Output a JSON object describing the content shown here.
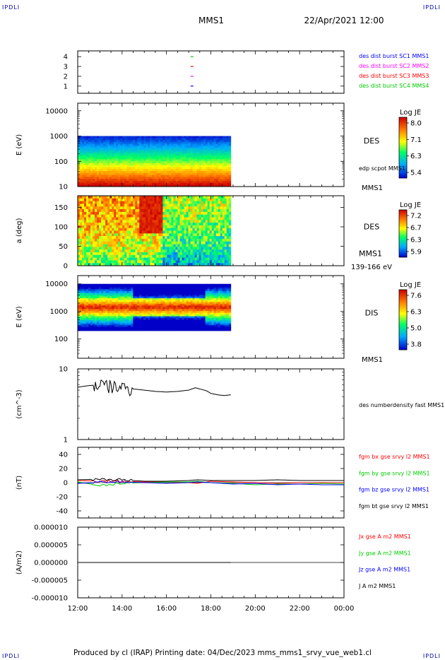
{
  "corners": {
    "label": "IPDLI"
  },
  "header": {
    "title": "MMS1",
    "datetime": "22/Apr/2021 12:00"
  },
  "footer": {
    "text": "Produced by cl (IRAP)   Printing date: 04/Dec/2023   mms_mms1_srvy_vue_web1.cl"
  },
  "colors": {
    "red": "#ff0000",
    "green": "#00cc00",
    "blue": "#0000ff",
    "magenta": "#ff00ff",
    "black": "#000000"
  },
  "chart_data": [
    {
      "id": "panel1",
      "type": "scatter",
      "yticks": [
        "1",
        "2",
        "3",
        "4"
      ],
      "legend": [
        {
          "text": "des dist burst SC1 MMS1",
          "color": "#0000ff"
        },
        {
          "text": "des dist burst SC2 MMS2",
          "color": "#ff00ff"
        },
        {
          "text": "des dist burst SC3 MMS3",
          "color": "#ff0000"
        },
        {
          "text": "des dist burst SC4 MMS4",
          "color": "#00cc00"
        }
      ],
      "points": [
        {
          "x": 17.15,
          "y": 1,
          "color": "#0000ff"
        },
        {
          "x": 17.15,
          "y": 2,
          "color": "#ff00ff"
        },
        {
          "x": 17.15,
          "y": 3,
          "color": "#ff0000"
        },
        {
          "x": 17.15,
          "y": 4,
          "color": "#00cc00"
        }
      ]
    },
    {
      "id": "panel2",
      "type": "heatmap",
      "ylabel": "E (eV)",
      "yscale": "log",
      "ylim": [
        10,
        20000
      ],
      "yticks": [
        "10",
        "100",
        "1000",
        "10000"
      ],
      "data_range": [
        12.0,
        18.9
      ],
      "data_ylim": [
        10,
        1000
      ],
      "label_main": "DES",
      "label_sub": "edp scpot MMS1",
      "label_bottom": "MMS1",
      "colorbar": {
        "title": "Log JE",
        "ticks": [
          "8.0",
          "7.1",
          "6.3",
          "5.4"
        ]
      }
    },
    {
      "id": "panel3",
      "type": "heatmap",
      "ylabel": "a (deg)",
      "ylim": [
        0,
        180
      ],
      "yticks": [
        "0",
        "50",
        "100",
        "150"
      ],
      "data_range": [
        12.0,
        18.9
      ],
      "label_main": "DES",
      "label_sub": "MMS1",
      "label_bottom": "139-166 eV",
      "colorbar": {
        "title": "Log JE",
        "ticks": [
          "7.2",
          "6.7",
          "6.3",
          "5.9"
        ]
      }
    },
    {
      "id": "panel4",
      "type": "heatmap",
      "ylabel": "E (eV)",
      "yscale": "log",
      "ylim": [
        20,
        20000
      ],
      "yticks": [
        "100",
        "1000",
        "10000"
      ],
      "data_range": [
        12.0,
        18.9
      ],
      "data_ylim": [
        200,
        10000
      ],
      "label_main": "DIS",
      "label_bottom": "MMS1",
      "colorbar": {
        "title": "Log JE",
        "ticks": [
          "7.6",
          "6.3",
          "5.0",
          "3.8"
        ]
      }
    },
    {
      "id": "panel5",
      "type": "line",
      "ylabel": "(cm^-3)",
      "yscale": "log",
      "ylim": [
        1,
        10
      ],
      "yticks": [
        "1",
        "10"
      ],
      "legend": [
        {
          "text": "des numberdensity fast MMS1",
          "color": "#000000"
        }
      ],
      "series": [
        {
          "name": "des numberdensity fast MMS1",
          "x": [
            12.0,
            12.5,
            13.0,
            13.5,
            14.0,
            14.5,
            15.0,
            15.5,
            16.0,
            16.5,
            17.0,
            17.3,
            17.5,
            17.8,
            18.0,
            18.3,
            18.6,
            18.9
          ],
          "y": [
            5.5,
            5.8,
            6.0,
            5.6,
            5.5,
            5.2,
            5.0,
            4.8,
            4.7,
            4.8,
            5.0,
            5.4,
            5.2,
            4.9,
            4.5,
            4.3,
            4.2,
            4.3
          ]
        }
      ]
    },
    {
      "id": "panel6",
      "type": "line",
      "ylabel": "(nT)",
      "ylim": [
        -50,
        50
      ],
      "yticks": [
        "-40",
        "-20",
        "0",
        "20",
        "40"
      ],
      "legend": [
        {
          "text": "fgm bx gse srvy l2 MMS1",
          "color": "#ff0000"
        },
        {
          "text": "fgm by gse srvy l2 MMS1",
          "color": "#00cc00"
        },
        {
          "text": "fgm bz gse srvy l2 MMS1",
          "color": "#0000ff"
        },
        {
          "text": "fgm bt gse srvy l2 MMS1",
          "color": "#000000"
        }
      ],
      "series": [
        {
          "name": "fgm bx gse srvy l2 MMS1",
          "x": [
            12,
            13,
            14,
            15,
            16,
            17,
            17.4,
            18,
            19,
            20,
            21,
            22,
            23,
            24
          ],
          "y": [
            3,
            2,
            2,
            1,
            1,
            0,
            -1,
            2,
            1,
            0,
            -1,
            0,
            0,
            0
          ]
        },
        {
          "name": "fgm by gse srvy l2 MMS1",
          "x": [
            12,
            13,
            14,
            15,
            16,
            17,
            17.4,
            18,
            19,
            20,
            21,
            22,
            23,
            24
          ],
          "y": [
            1,
            -4,
            -1,
            0,
            1,
            1,
            2,
            0,
            -1,
            -3,
            -2,
            -2,
            -1,
            -2
          ]
        },
        {
          "name": "fgm bz gse srvy l2 MMS1",
          "x": [
            12,
            13,
            14,
            15,
            16,
            17,
            17.4,
            18,
            19,
            20,
            21,
            22,
            23,
            24
          ],
          "y": [
            -1,
            0,
            1,
            0,
            -1,
            0,
            1,
            0,
            -2,
            -1,
            -3,
            -2,
            -3,
            -3
          ]
        },
        {
          "name": "fgm bt gse srvy l2 MMS1",
          "x": [
            12,
            13,
            14,
            15,
            16,
            17,
            17.4,
            18,
            19,
            20,
            21,
            22,
            23,
            24
          ],
          "y": [
            4,
            5,
            4,
            2,
            2,
            3,
            4,
            3,
            3,
            3,
            4,
            3,
            3,
            3
          ]
        }
      ]
    },
    {
      "id": "panel7",
      "type": "line",
      "ylabel": "(A/m2)",
      "ylim": [
        -1e-05,
        1e-05
      ],
      "yticks": [
        "-0.000010",
        "-0.000005",
        "0.000000",
        "0.000005",
        "0.000010"
      ],
      "xticks": [
        "12:00",
        "14:00",
        "16:00",
        "18:00",
        "20:00",
        "22:00",
        "00:00"
      ],
      "legend": [
        {
          "text": "Jx gse A m2 MMS1",
          "color": "#ff0000"
        },
        {
          "text": "Jy gse A m2 MMS1",
          "color": "#00cc00"
        },
        {
          "text": "Jz gse A m2 MMS1",
          "color": "#0000ff"
        },
        {
          "text": "J A m2 MMS1",
          "color": "#000000"
        }
      ],
      "series": [
        {
          "name": "J A m2 MMS1",
          "x": [
            12.0,
            15.5,
            18.9
          ],
          "y": [
            0,
            0,
            0
          ]
        }
      ]
    }
  ]
}
